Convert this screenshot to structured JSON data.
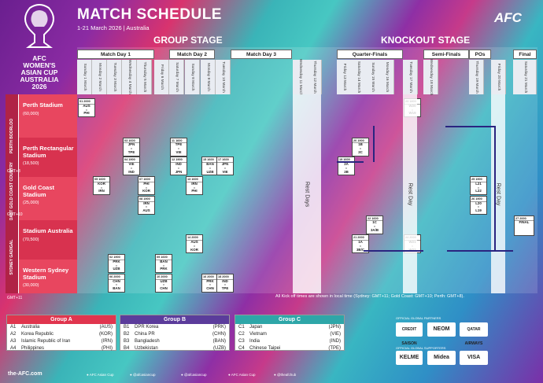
{
  "header": {
    "title": "MATCH SCHEDULE",
    "subtitle": "1-21 March 2026 | Australia",
    "brand": "AFC"
  },
  "logo": {
    "text": "AFC\nWOMEN'S\nASIAN CUP\nAUSTRALIA\n2026"
  },
  "stages": {
    "group": "GROUP STAGE",
    "knockout": "KNOCKOUT STAGE"
  },
  "rounds": [
    "Match Day 1",
    "Match Day 2",
    "Match Day 3",
    "Quarter-Finals",
    "Semi-Finals",
    "POs",
    "Final"
  ],
  "dates": [
    "Sunday 1 March",
    "Monday 2 March",
    "Tuesday 3 March",
    "Wednesday 4 March",
    "Thursday 5 March",
    "Friday 6 March",
    "Saturday 7 March",
    "Sunday 8 March",
    "Monday 9 March",
    "Tuesday 10 March",
    "Wednesday 11 March",
    "Thursday 12 March",
    "Friday 13 March",
    "Saturday 14 March",
    "Sunday 15 March",
    "Monday 16 March",
    "Tuesday 17 March",
    "Wednesday 18 March",
    "Thursday 19 March",
    "Friday 20 March",
    "Saturday 21 March"
  ],
  "venues": [
    {
      "name": "Perth Stadium",
      "cap": "(60,000)"
    },
    {
      "name": "Perth Rectangular Stadium",
      "cap": "(18,500)"
    },
    {
      "name": "Gold Coast Stadium",
      "cap": "(25,000)"
    },
    {
      "name": "Stadium Australia",
      "cap": "(70,500)"
    },
    {
      "name": "Western Sydney Stadium",
      "cap": "(30,000)"
    }
  ],
  "regions": [
    "PERTH BOORLOO",
    "GOLD COAST GOLD COAST COUNTRY",
    "SYDNEY GADIGAL"
  ],
  "gmt": [
    "GMT+8",
    "GMT+10",
    "GMT+11"
  ],
  "matches": [
    {
      "no": "01",
      "time": "2000",
      "t1": "AUS",
      "t2": "PHI",
      "col": 0,
      "row": 0
    },
    {
      "no": "03",
      "time": "1600",
      "t1": "JPN",
      "t2": "TPE",
      "col": 3,
      "row": 1
    },
    {
      "no": "04",
      "time": "1900",
      "t1": "VIE",
      "t2": "IND",
      "col": 3,
      "row": 1.5
    },
    {
      "no": "05",
      "time": "1600",
      "t1": "KOR",
      "t2": "IRN",
      "col": 1,
      "row": 2
    },
    {
      "no": "02",
      "time": "1900",
      "t1": "PRK",
      "t2": "UZB",
      "col": 2,
      "row": 4
    },
    {
      "no": "06",
      "time": "2000",
      "t1": "CHN",
      "t2": "BAN",
      "col": 2,
      "row": 4.5
    },
    {
      "no": "07",
      "time": "1600",
      "t1": "PHI",
      "t2": "KOR",
      "col": 4,
      "row": 2
    },
    {
      "no": "08",
      "time": "1900",
      "t1": "IRN",
      "t2": "AUS",
      "col": 4,
      "row": 2.5
    },
    {
      "no": "09",
      "time": "1600",
      "t1": "BAN",
      "t2": "PRK",
      "col": 5,
      "row": 4
    },
    {
      "no": "10",
      "time": "2000",
      "t1": "UZB",
      "t2": "CHN",
      "col": 5,
      "row": 4.5
    },
    {
      "no": "11",
      "time": "1600",
      "t1": "TPE",
      "t2": "VIE",
      "col": 6,
      "row": 1
    },
    {
      "no": "12",
      "time": "1900",
      "t1": "IND",
      "t2": "JPN",
      "col": 6,
      "row": 1.5
    },
    {
      "no": "13",
      "time": "1600",
      "t1": "IRN",
      "t2": "PHI",
      "col": 7,
      "row": 2
    },
    {
      "no": "14",
      "time": "2000",
      "t1": "AUS",
      "t2": "KOR",
      "col": 7,
      "row": 3.5
    },
    {
      "no": "15",
      "time": "1600",
      "t1": "BAN",
      "t2": "UZB",
      "col": 8,
      "row": 1.5
    },
    {
      "no": "17",
      "time": "1600",
      "t1": "JPN",
      "t2": "VIE",
      "col": 9,
      "row": 1.5
    },
    {
      "no": "16",
      "time": "2000",
      "t1": "PRK",
      "t2": "CHN",
      "col": 8,
      "row": 4.5
    },
    {
      "no": "18",
      "time": "2000",
      "t1": "IND",
      "t2": "TPE",
      "col": 9,
      "row": 4.5
    },
    {
      "no": "19",
      "time": "1600",
      "t1": "2A",
      "t2": "2B",
      "col": 12,
      "row": 1.5
    },
    {
      "no": "20",
      "time": "1900",
      "t1": "1B",
      "t2": "2C",
      "col": 13,
      "row": 1
    },
    {
      "no": "22",
      "time": "1600",
      "t1": "1C",
      "t2": "3A/B",
      "col": 14,
      "row": 3
    },
    {
      "no": "21",
      "time": "2000",
      "t1": "1A",
      "t2": "3B/C",
      "col": 13,
      "row": 3.5
    },
    {
      "no": "23",
      "time": "1800",
      "t1": "W20",
      "t2": "W19",
      "col": 16,
      "row": 0
    },
    {
      "no": "24",
      "time": "2000",
      "t1": "W21",
      "t2": "W22",
      "col": 16,
      "row": 3.5
    },
    {
      "no": "25",
      "time": "1900",
      "t1": "L21",
      "t2": "L22",
      "col": 18,
      "row": 2
    },
    {
      "no": "26",
      "time": "1900",
      "t1": "L20",
      "t2": "L19",
      "col": 18,
      "row": 2.5
    },
    {
      "no": "27",
      "time": "2000",
      "t1": "FINAL",
      "t2": "",
      "col": 20,
      "row": 3
    }
  ],
  "rest_days": [
    "Rest Days",
    "Rest Day",
    "Rest Day"
  ],
  "note": "All Kick off times are shown in local time (Sydney: GMT+11; Gold Coast: GMT+10; Perth: GMT+8).",
  "groups": [
    {
      "name": "Group A",
      "color": "#e0354e",
      "teams": [
        [
          "A1",
          "Australia",
          "(AUS)"
        ],
        [
          "A2",
          "Korea Republic",
          "(KOR)"
        ],
        [
          "A3",
          "Islamic Republic of Iran",
          "(IRN)"
        ],
        [
          "A4",
          "Philippines",
          "(PHI)"
        ]
      ]
    },
    {
      "name": "Group B",
      "color": "#5b3c9b",
      "teams": [
        [
          "B1",
          "DPR Korea",
          "(PRK)"
        ],
        [
          "B2",
          "China PR",
          "(CHN)"
        ],
        [
          "B3",
          "Bangladesh",
          "(BAN)"
        ],
        [
          "B4",
          "Uzbekistan",
          "(UZB)"
        ]
      ]
    },
    {
      "name": "Group C",
      "color": "#2ea6a8",
      "teams": [
        [
          "C1",
          "Japan",
          "(JPN)"
        ],
        [
          "C2",
          "Vietnam",
          "(VIE)"
        ],
        [
          "C3",
          "India",
          "(IND)"
        ],
        [
          "C4",
          "Chinese Taipei",
          "(TPE)"
        ]
      ]
    }
  ],
  "partners": {
    "global_partners": "OFFICIAL GLOBAL PARTNERS",
    "global_supporters": "OFFICIAL GLOBAL SUPPORTERS",
    "logos": [
      "CREDIT SAISON",
      "NEOM",
      "QATAR AIRWAYS",
      "KELME",
      "Midea",
      "VISA"
    ]
  },
  "footer": {
    "site": "the-AFC.com",
    "social": [
      "AFC Asian Cup",
      "@afcasiancup",
      "@afcasiancup",
      "AFC Asian Cup",
      "@theafchub"
    ]
  }
}
